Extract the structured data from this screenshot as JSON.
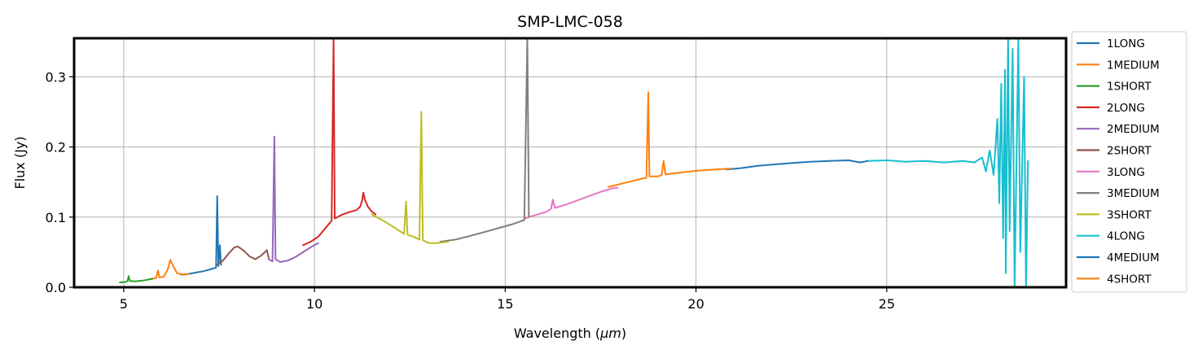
{
  "chart_data": {
    "type": "line",
    "title": "SMP-LMC-058",
    "xlabel": "Wavelength (",
    "xlabel_unit": "μm",
    "xlabel_close": ")",
    "ylabel": "Flux (Jy)",
    "xlim": [
      3.7,
      29.7
    ],
    "ylim": [
      0.0,
      0.355
    ],
    "xticks": [
      5,
      10,
      15,
      20,
      25
    ],
    "yticks": [
      0.0,
      0.1,
      0.2,
      0.3
    ],
    "xtick_labels": [
      "5",
      "10",
      "15",
      "20",
      "25"
    ],
    "ytick_labels": [
      "0.0",
      "0.1",
      "0.2",
      "0.3"
    ],
    "grid": true,
    "legend_position": "outside-right",
    "series": [
      {
        "name": "1LONG",
        "color": "#1f77b4",
        "points": [
          [
            6.5,
            0.018
          ],
          [
            6.7,
            0.019
          ],
          [
            6.9,
            0.021
          ],
          [
            7.1,
            0.023
          ],
          [
            7.3,
            0.026
          ],
          [
            7.42,
            0.028
          ],
          [
            7.45,
            0.13
          ],
          [
            7.48,
            0.03
          ],
          [
            7.52,
            0.06
          ],
          [
            7.55,
            0.032
          ]
        ]
      },
      {
        "name": "1MEDIUM",
        "color": "#ff7f0e",
        "points": [
          [
            5.7,
            0.012
          ],
          [
            5.85,
            0.013
          ],
          [
            5.9,
            0.024
          ],
          [
            5.93,
            0.014
          ],
          [
            6.05,
            0.015
          ],
          [
            6.15,
            0.025
          ],
          [
            6.22,
            0.039
          ],
          [
            6.3,
            0.03
          ],
          [
            6.4,
            0.02
          ],
          [
            6.6,
            0.018
          ],
          [
            6.7,
            0.019
          ]
        ]
      },
      {
        "name": "1SHORT",
        "color": "#2ca02c",
        "points": [
          [
            4.9,
            0.007
          ],
          [
            5.05,
            0.0075
          ],
          [
            5.1,
            0.009
          ],
          [
            5.13,
            0.016
          ],
          [
            5.16,
            0.009
          ],
          [
            5.3,
            0.0085
          ],
          [
            5.5,
            0.0095
          ],
          [
            5.65,
            0.011
          ],
          [
            5.75,
            0.012
          ]
        ]
      },
      {
        "name": "2LONG",
        "color": "#d62728",
        "points": [
          [
            9.7,
            0.06
          ],
          [
            9.9,
            0.065
          ],
          [
            10.1,
            0.072
          ],
          [
            10.3,
            0.085
          ],
          [
            10.45,
            0.095
          ],
          [
            10.5,
            0.355
          ],
          [
            10.53,
            0.098
          ],
          [
            10.7,
            0.103
          ],
          [
            10.9,
            0.107
          ],
          [
            11.1,
            0.11
          ],
          [
            11.2,
            0.115
          ],
          [
            11.25,
            0.124
          ],
          [
            11.28,
            0.135
          ],
          [
            11.32,
            0.125
          ],
          [
            11.4,
            0.115
          ],
          [
            11.5,
            0.108
          ],
          [
            11.6,
            0.104
          ]
        ]
      },
      {
        "name": "2MEDIUM",
        "color": "#9467bd",
        "points": [
          [
            8.8,
            0.04
          ],
          [
            8.9,
            0.037
          ],
          [
            8.95,
            0.215
          ],
          [
            8.98,
            0.04
          ],
          [
            9.1,
            0.036
          ],
          [
            9.3,
            0.038
          ],
          [
            9.5,
            0.043
          ],
          [
            9.7,
            0.05
          ],
          [
            9.9,
            0.057
          ],
          [
            10.1,
            0.063
          ]
        ]
      },
      {
        "name": "2SHORT",
        "color": "#8c564b",
        "points": [
          [
            7.45,
            0.032
          ],
          [
            7.6,
            0.038
          ],
          [
            7.75,
            0.048
          ],
          [
            7.9,
            0.057
          ],
          [
            8.0,
            0.058
          ],
          [
            8.15,
            0.052
          ],
          [
            8.3,
            0.044
          ],
          [
            8.45,
            0.04
          ],
          [
            8.6,
            0.045
          ],
          [
            8.7,
            0.05
          ],
          [
            8.75,
            0.053
          ],
          [
            8.8,
            0.042
          ]
        ]
      },
      {
        "name": "3LONG",
        "color": "#e377c2",
        "points": [
          [
            15.5,
            0.098
          ],
          [
            15.8,
            0.103
          ],
          [
            16.1,
            0.108
          ],
          [
            16.2,
            0.112
          ],
          [
            16.25,
            0.125
          ],
          [
            16.3,
            0.113
          ],
          [
            16.6,
            0.118
          ],
          [
            16.9,
            0.124
          ],
          [
            17.2,
            0.13
          ],
          [
            17.5,
            0.136
          ],
          [
            17.8,
            0.141
          ],
          [
            17.95,
            0.142
          ]
        ]
      },
      {
        "name": "3MEDIUM",
        "color": "#7f7f7f",
        "points": [
          [
            13.3,
            0.065
          ],
          [
            13.7,
            0.068
          ],
          [
            14.0,
            0.072
          ],
          [
            14.4,
            0.078
          ],
          [
            14.8,
            0.084
          ],
          [
            15.2,
            0.09
          ],
          [
            15.5,
            0.096
          ],
          [
            15.58,
            0.355
          ],
          [
            15.62,
            0.1
          ]
        ]
      },
      {
        "name": "3SHORT",
        "color": "#bcbd22",
        "points": [
          [
            11.5,
            0.104
          ],
          [
            11.8,
            0.095
          ],
          [
            12.1,
            0.085
          ],
          [
            12.35,
            0.076
          ],
          [
            12.4,
            0.122
          ],
          [
            12.44,
            0.075
          ],
          [
            12.6,
            0.072
          ],
          [
            12.75,
            0.068
          ],
          [
            12.8,
            0.25
          ],
          [
            12.84,
            0.067
          ],
          [
            13.0,
            0.063
          ],
          [
            13.2,
            0.063
          ],
          [
            13.5,
            0.065
          ]
        ]
      },
      {
        "name": "4LONG",
        "color": "#17becf",
        "points": [
          [
            24.5,
            0.18
          ],
          [
            25.0,
            0.181
          ],
          [
            25.5,
            0.179
          ],
          [
            26.0,
            0.18
          ],
          [
            26.5,
            0.178
          ],
          [
            27.0,
            0.18
          ],
          [
            27.3,
            0.178
          ],
          [
            27.5,
            0.185
          ],
          [
            27.6,
            0.165
          ],
          [
            27.7,
            0.195
          ],
          [
            27.8,
            0.16
          ],
          [
            27.9,
            0.24
          ],
          [
            27.95,
            0.12
          ],
          [
            28.0,
            0.29
          ],
          [
            28.05,
            0.07
          ],
          [
            28.1,
            0.31
          ],
          [
            28.12,
            0.02
          ],
          [
            28.18,
            0.355
          ],
          [
            28.22,
            0.08
          ],
          [
            28.3,
            0.34
          ],
          [
            28.35,
            0.0
          ],
          [
            28.45,
            0.355
          ],
          [
            28.5,
            0.05
          ],
          [
            28.6,
            0.3
          ],
          [
            28.65,
            0.0
          ],
          [
            28.7,
            0.18
          ]
        ]
      },
      {
        "name": "4MEDIUM",
        "color": "#1f77b4",
        "points": [
          [
            20.8,
            0.168
          ],
          [
            21.2,
            0.17
          ],
          [
            21.6,
            0.173
          ],
          [
            22.0,
            0.175
          ],
          [
            22.5,
            0.177
          ],
          [
            23.0,
            0.179
          ],
          [
            23.5,
            0.18
          ],
          [
            24.0,
            0.181
          ],
          [
            24.3,
            0.178
          ],
          [
            24.5,
            0.18
          ]
        ]
      },
      {
        "name": "4SHORT",
        "color": "#ff7f0e",
        "points": [
          [
            17.7,
            0.143
          ],
          [
            18.0,
            0.147
          ],
          [
            18.3,
            0.151
          ],
          [
            18.6,
            0.155
          ],
          [
            18.7,
            0.156
          ],
          [
            18.75,
            0.278
          ],
          [
            18.78,
            0.158
          ],
          [
            19.0,
            0.158
          ],
          [
            19.1,
            0.16
          ],
          [
            19.15,
            0.18
          ],
          [
            19.2,
            0.161
          ],
          [
            19.5,
            0.163
          ],
          [
            20.0,
            0.166
          ],
          [
            20.5,
            0.168
          ],
          [
            20.9,
            0.169
          ]
        ]
      }
    ]
  }
}
